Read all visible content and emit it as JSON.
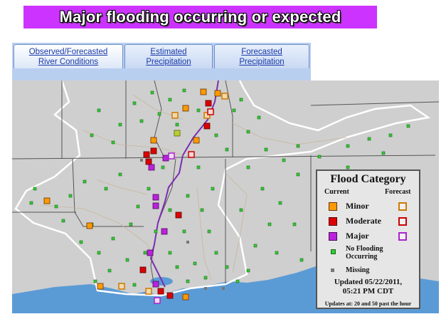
{
  "banner": {
    "text": "Major flooding occurring or expected",
    "color": "#cc33ff"
  },
  "tabs": [
    {
      "line1": "Observed/Forecasted",
      "line2": "River Conditions",
      "active": true
    },
    {
      "line1": "Estimated",
      "line2": "Precipitation",
      "active": false
    },
    {
      "line1": "Forecasted",
      "line2": "Precipitation",
      "active": false
    }
  ],
  "legend": {
    "title": "Flood Category",
    "current_label": "Current",
    "forecast_label": "Forecast",
    "categories": [
      {
        "name": "Minor",
        "color": "#ff9900"
      },
      {
        "name": "Moderate",
        "color": "#dd0000"
      },
      {
        "name": "Major",
        "color": "#bb22dd"
      }
    ],
    "no_flooding_line1": "No Flooding",
    "no_flooding_line2": "Occurring",
    "no_flooding_color": "#33cc33",
    "missing": "Missing",
    "missing_color": "#777777",
    "updated_line1": "Updated 05/22/2011,",
    "updated_line2": "05:21 PM CDT",
    "note": "Updates at: 20 and 50 past the hour"
  },
  "colors": {
    "land": "#cfcfcf",
    "water": "#5b9bd5",
    "basin_boundary": "#ffffff",
    "state_line": "#555555"
  }
}
